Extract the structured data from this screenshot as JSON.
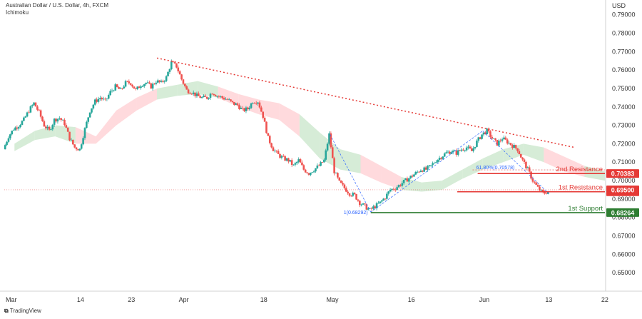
{
  "header": {
    "symbol_line": "Australian Dollar / U.S. Dollar, 4h, FXCM",
    "indicator": "Ichimoku",
    "currency": "USD",
    "brand": "TradingView"
  },
  "chart_data": {
    "type": "candlestick",
    "instrument": "AUD/USD",
    "timeframe": "4h",
    "ylim": [
      0.64,
      0.798
    ],
    "y_ticks": [
      "0.79000",
      "0.78000",
      "0.77000",
      "0.76000",
      "0.75000",
      "0.74000",
      "0.73000",
      "0.72000",
      "0.71000",
      "0.70000",
      "0.69000",
      "0.68000",
      "0.67000",
      "0.66000",
      "0.65000"
    ],
    "x_ticks": [
      "Mar",
      "14",
      "23",
      "Apr",
      "18",
      "May",
      "16",
      "Jun",
      "13",
      "22"
    ],
    "price_path": [
      [
        0,
        0.717
      ],
      [
        1,
        0.724
      ],
      [
        2,
        0.728
      ],
      [
        3,
        0.73
      ],
      [
        4,
        0.733
      ],
      [
        5,
        0.738
      ],
      [
        6,
        0.742
      ],
      [
        7,
        0.737
      ],
      [
        8,
        0.73
      ],
      [
        9,
        0.727
      ],
      [
        10,
        0.733
      ],
      [
        11,
        0.734
      ],
      [
        12,
        0.731
      ],
      [
        13,
        0.723
      ],
      [
        14,
        0.718
      ],
      [
        15,
        0.717
      ],
      [
        16,
        0.728
      ],
      [
        17,
        0.738
      ],
      [
        18,
        0.743
      ],
      [
        19,
        0.745
      ],
      [
        20,
        0.743
      ],
      [
        21,
        0.748
      ],
      [
        22,
        0.751
      ],
      [
        23,
        0.749
      ],
      [
        24,
        0.753
      ],
      [
        25,
        0.753
      ],
      [
        26,
        0.749
      ],
      [
        27,
        0.752
      ],
      [
        28,
        0.753
      ],
      [
        29,
        0.751
      ],
      [
        30,
        0.754
      ],
      [
        31,
        0.753
      ],
      [
        32,
        0.756
      ],
      [
        33,
        0.764
      ],
      [
        34,
        0.762
      ],
      [
        35,
        0.755
      ],
      [
        36,
        0.749
      ],
      [
        37,
        0.748
      ],
      [
        38,
        0.746
      ],
      [
        39,
        0.745
      ],
      [
        40,
        0.745
      ],
      [
        41,
        0.748
      ],
      [
        42,
        0.746
      ],
      [
        43,
        0.745
      ],
      [
        44,
        0.744
      ],
      [
        45,
        0.742
      ],
      [
        46,
        0.741
      ],
      [
        47,
        0.738
      ],
      [
        48,
        0.739
      ],
      [
        49,
        0.743
      ],
      [
        50,
        0.743
      ],
      [
        51,
        0.735
      ],
      [
        52,
        0.723
      ],
      [
        53,
        0.717
      ],
      [
        54,
        0.714
      ],
      [
        55,
        0.712
      ],
      [
        56,
        0.711
      ],
      [
        57,
        0.708
      ],
      [
        58,
        0.711
      ],
      [
        59,
        0.706
      ],
      [
        60,
        0.704
      ],
      [
        61,
        0.706
      ],
      [
        62,
        0.708
      ],
      [
        63,
        0.711
      ],
      [
        64,
        0.725
      ],
      [
        65,
        0.705
      ],
      [
        66,
        0.699
      ],
      [
        67,
        0.696
      ],
      [
        68,
        0.693
      ],
      [
        69,
        0.692
      ],
      [
        70,
        0.688
      ],
      [
        71,
        0.686
      ],
      [
        72,
        0.684
      ],
      [
        73,
        0.686
      ],
      [
        74,
        0.688
      ],
      [
        75,
        0.691
      ],
      [
        76,
        0.695
      ],
      [
        77,
        0.696
      ],
      [
        78,
        0.698
      ],
      [
        79,
        0.7
      ],
      [
        80,
        0.702
      ],
      [
        81,
        0.704
      ],
      [
        82,
        0.706
      ],
      [
        83,
        0.706
      ],
      [
        84,
        0.708
      ],
      [
        85,
        0.711
      ],
      [
        86,
        0.713
      ],
      [
        87,
        0.715
      ],
      [
        88,
        0.716
      ],
      [
        89,
        0.715
      ],
      [
        90,
        0.717
      ],
      [
        91,
        0.718
      ],
      [
        92,
        0.716
      ],
      [
        93,
        0.721
      ],
      [
        94,
        0.725
      ],
      [
        95,
        0.727
      ],
      [
        96,
        0.723
      ],
      [
        97,
        0.72
      ],
      [
        98,
        0.723
      ],
      [
        99,
        0.721
      ],
      [
        100,
        0.719
      ],
      [
        101,
        0.717
      ],
      [
        102,
        0.711
      ],
      [
        103,
        0.706
      ],
      [
        104,
        0.7
      ],
      [
        105,
        0.696
      ],
      [
        106,
        0.693
      ],
      [
        107,
        0.694
      ]
    ],
    "cloud_path": [
      [
        0,
        0.72,
        0.716
      ],
      [
        4,
        0.727,
        0.722
      ],
      [
        8,
        0.73,
        0.724
      ],
      [
        12,
        0.729,
        0.72
      ],
      [
        16,
        0.724,
        0.72
      ],
      [
        20,
        0.738,
        0.73
      ],
      [
        24,
        0.745,
        0.738
      ],
      [
        28,
        0.75,
        0.744
      ],
      [
        32,
        0.752,
        0.746
      ],
      [
        36,
        0.754,
        0.747
      ],
      [
        40,
        0.751,
        0.745
      ],
      [
        44,
        0.747,
        0.74
      ],
      [
        48,
        0.744,
        0.736
      ],
      [
        52,
        0.742,
        0.733
      ],
      [
        56,
        0.736,
        0.724
      ],
      [
        60,
        0.726,
        0.712
      ],
      [
        64,
        0.717,
        0.706
      ],
      [
        68,
        0.714,
        0.704
      ],
      [
        72,
        0.708,
        0.699
      ],
      [
        76,
        0.702,
        0.695
      ],
      [
        80,
        0.699,
        0.694
      ],
      [
        84,
        0.7,
        0.695
      ],
      [
        88,
        0.706,
        0.701
      ],
      [
        92,
        0.712,
        0.706
      ],
      [
        96,
        0.717,
        0.71
      ],
      [
        100,
        0.72,
        0.714
      ],
      [
        104,
        0.718,
        0.71
      ],
      [
        108,
        0.713,
        0.705
      ],
      [
        112,
        0.708,
        0.702
      ],
      [
        116,
        0.705,
        0.7
      ]
    ],
    "levels": [
      {
        "name": "2nd Resistance",
        "value": "0.70383",
        "color": "#e53935"
      },
      {
        "name": "1st Resistance",
        "value": "0.69394",
        "color": "#e53935"
      },
      {
        "name": "1st Support",
        "value": "0.68264",
        "color": "#2e7d32"
      }
    ],
    "last_price_label": "0.69500",
    "fib_labels": [
      {
        "text": "61.80%(0.70578)",
        "value": 0.7058
      },
      {
        "text": "1(0.68292)",
        "value": 0.6829
      }
    ],
    "trendline": {
      "from": [
        0.7665
      ],
      "to": [
        0.718
      ],
      "color": "#e53935",
      "style": "dotted"
    },
    "colors": {
      "up": "#26a69a",
      "down": "#ef5350",
      "cloud_bull": "#c8e6c9",
      "cloud_bear": "#ffcdd2",
      "support": "#2e7d32",
      "resistance": "#e53935"
    }
  }
}
